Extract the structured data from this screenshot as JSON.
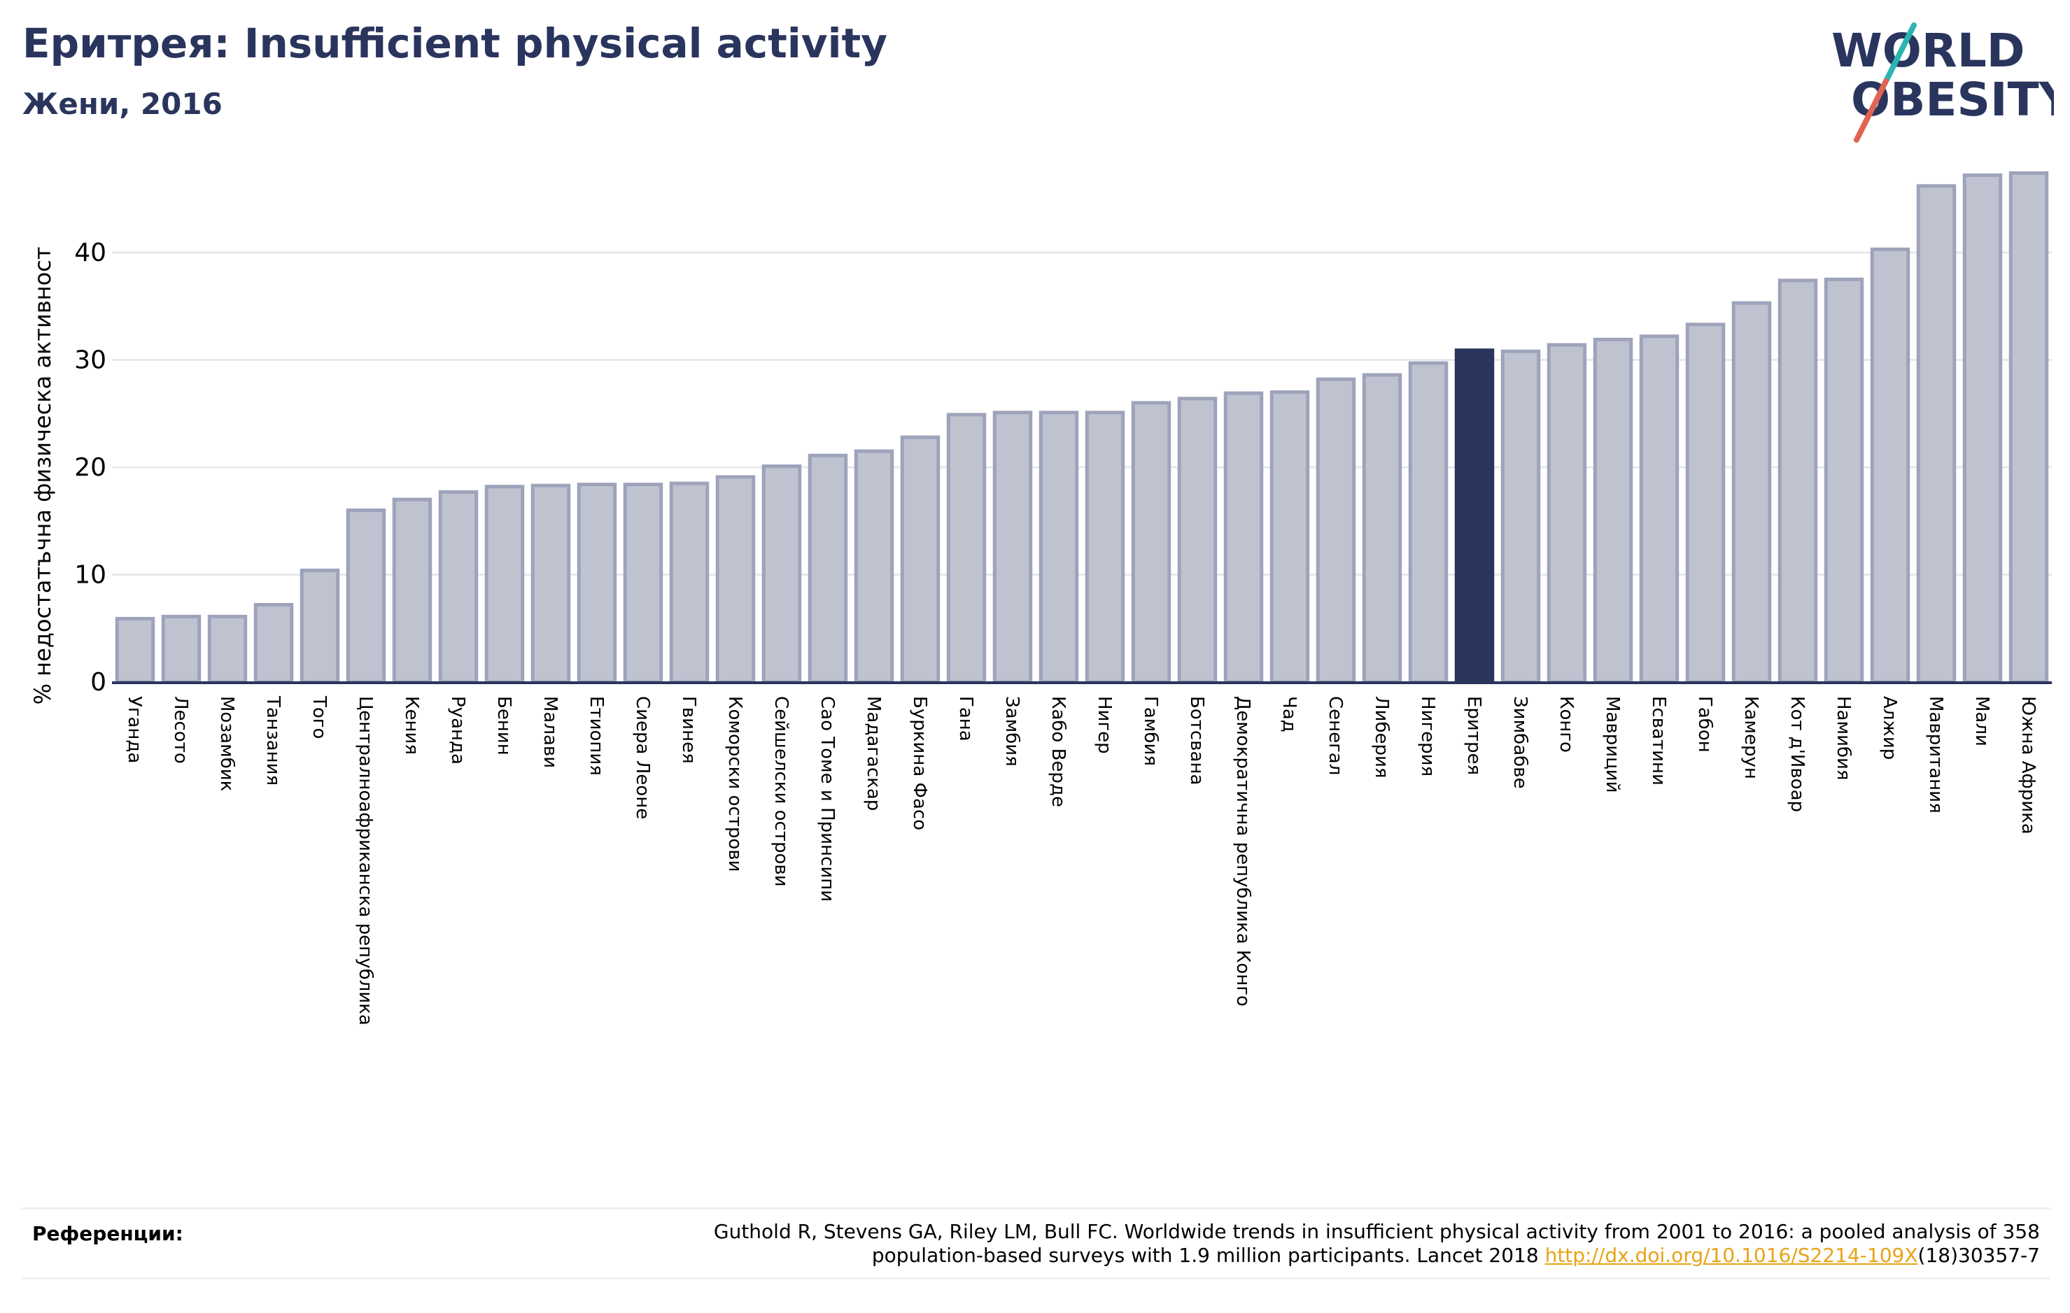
{
  "header": {
    "title": "Еритрея: Insufficient physical activity",
    "subtitle": "Жени, 2016"
  },
  "logo": {
    "line1": "WORLD",
    "line2": "OBESITY",
    "text_color": "#2a355e",
    "slash_teal": "#2bb5b0",
    "slash_coral": "#e06452"
  },
  "colors": {
    "bar_fill": "#bfc3d0",
    "bar_stroke": "#9ea3bb",
    "highlight": "#2a355e",
    "grid": "#e7e8ec",
    "axis": "#2a355e"
  },
  "chart_data": {
    "type": "bar",
    "ylabel": "% недостатъчна физическа активност",
    "ylim": [
      0,
      48
    ],
    "yticks": [
      0,
      10,
      20,
      30,
      40
    ],
    "grid": true,
    "highlight_category": "Еритрея",
    "categories": [
      "Уганда",
      "Лесото",
      "Мозамбик",
      "Танзания",
      "Того",
      "Централноафриканска република",
      "Кения",
      "Руанда",
      "Бенин",
      "Малави",
      "Етиопия",
      "Сиера Леоне",
      "Гвинея",
      "Коморски острови",
      "Сейшелски острови",
      "Сао Томе и Принсипи",
      "Мадагаскар",
      "Буркина Фасо",
      "Гана",
      "Замбия",
      "Кабо Верде",
      "Нигер",
      "Гамбия",
      "Ботсвана",
      "Демократична република Конго",
      "Чад",
      "Сенегал",
      "Либерия",
      "Нигерия",
      "Еритрея",
      "Зимбабве",
      "Конго",
      "Мавриций",
      "Есватини",
      "Габон",
      "Камерун",
      "Кот д'Ивоар",
      "Намибия",
      "Алжир",
      "Мавритания",
      "Мали",
      "Южна Африка"
    ],
    "values": [
      5.9,
      6.1,
      6.1,
      7.2,
      10.4,
      16.0,
      17.0,
      17.7,
      18.2,
      18.3,
      18.4,
      18.4,
      18.5,
      19.1,
      20.1,
      21.1,
      21.5,
      22.8,
      24.9,
      25.1,
      25.1,
      25.1,
      26.0,
      26.4,
      26.9,
      27.0,
      28.2,
      28.6,
      29.7,
      30.9,
      30.8,
      31.4,
      31.9,
      32.2,
      33.3,
      35.3,
      37.4,
      37.5,
      40.3,
      46.2,
      47.2,
      47.4
    ]
  },
  "references": {
    "label": "Референции:",
    "line1": "Guthold R, Stevens GA, Riley LM, Bull FC. Worldwide trends in insufficient physical activity from 2001 to 2016: a pooled analysis of 358",
    "line2_before": "population-based surveys with 1.9 million participants. Lancet 2018 ",
    "link_text": "http://dx.doi.org/10.1016/S2214-109X",
    "line2_after": "(18)30357-7"
  }
}
